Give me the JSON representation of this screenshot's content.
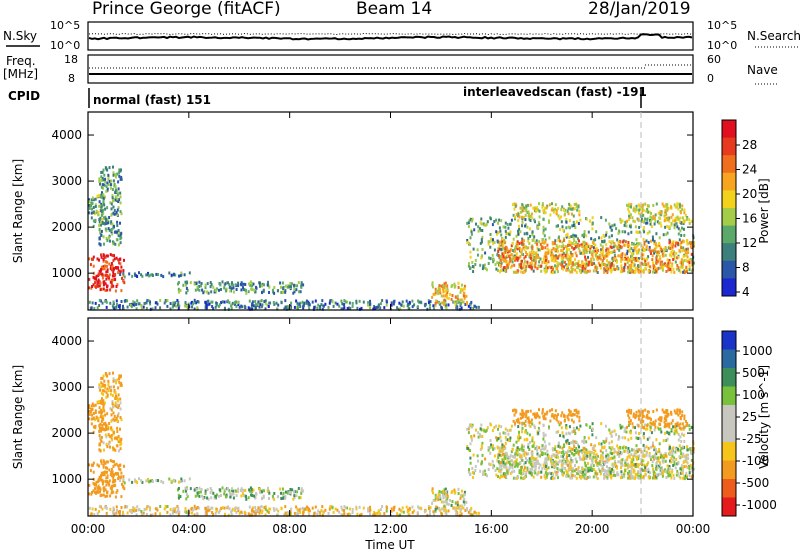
{
  "header": {
    "station": "Prince George (fitACF)",
    "beam": "Beam 14",
    "date": "28/Jan/2019"
  },
  "noise_panel": {
    "left_label": "N.Sky",
    "right_label": "N.Search",
    "left_ticks": [
      "10^5",
      "10^0"
    ],
    "right_ticks": [
      "10^5",
      "10^0"
    ]
  },
  "freq_panel": {
    "left_label_line1": "Freq.",
    "left_label_line2": "[MHz]",
    "right_label": "Nave",
    "left_ticks": [
      "18",
      "8"
    ],
    "right_ticks": [
      "60",
      "0"
    ]
  },
  "cpid": {
    "label": "CPID",
    "segments": [
      {
        "text": "normal (fast) 151",
        "start_hour": 0.0
      },
      {
        "text": "interleavedscan (fast) -191",
        "start_hour": 21.7
      }
    ]
  },
  "x_axis": {
    "label": "Time UT",
    "range_hours": [
      0,
      24
    ],
    "tick_labels": [
      "00:00",
      "04:00",
      "08:00",
      "12:00",
      "16:00",
      "20:00",
      "00:00"
    ]
  },
  "power_panel": {
    "ylabel": "Slant Range [km]",
    "y_ticks": [
      "1000",
      "2000",
      "3000",
      "4000"
    ],
    "colorbar_label": "Power [dB]",
    "colorbar_ticks": [
      "4",
      "8",
      "12",
      "16",
      "20",
      "24",
      "28"
    ],
    "colors": [
      "#1b28d0",
      "#2a57a8",
      "#3c7f7c",
      "#5aa86a",
      "#a5cc49",
      "#f2d21b",
      "#f7a51e",
      "#f06f1e",
      "#e83a1f",
      "#e0101e"
    ]
  },
  "velocity_panel": {
    "ylabel": "Slant Range [km]",
    "y_ticks": [
      "1000",
      "2000",
      "3000",
      "4000"
    ],
    "colorbar_label": "Velocity [m s^-1]",
    "colorbar_ticks": [
      "1000",
      "500",
      "100",
      "25",
      "-25",
      "-100",
      "-500",
      "-1000"
    ],
    "colors": [
      "#1a33c8",
      "#2b6aa0",
      "#3d8e5a",
      "#79c13a",
      "#c7c7c0",
      "#c7c7c0",
      "#f6c51c",
      "#f39b1e",
      "#ee5c1c",
      "#e41a1c"
    ]
  },
  "chart_data": {
    "type": "heatmap",
    "x": {
      "name": "Time UT",
      "unit": "hours",
      "range": [
        0,
        24
      ]
    },
    "y": {
      "name": "Slant Range",
      "unit": "km",
      "range": [
        200,
        4500
      ]
    },
    "power_db_range": [
      0,
      30
    ],
    "velocity_range_m_s": [
      -1000,
      1000
    ],
    "scatter_regions": [
      {
        "t": [
          0.0,
          1.4
        ],
        "r": [
          600,
          1400
        ],
        "power": 27,
        "velocity": -150
      },
      {
        "t": [
          0.4,
          1.3
        ],
        "r": [
          1600,
          3300
        ],
        "power": 9,
        "velocity": -80
      },
      {
        "t": [
          0.0,
          0.6
        ],
        "r": [
          2000,
          2700
        ],
        "power": 11,
        "velocity": -120
      },
      {
        "t": [
          1.2,
          4.0
        ],
        "r": [
          900,
          1000
        ],
        "power": 7,
        "velocity": 10
      },
      {
        "t": [
          3.5,
          8.5
        ],
        "r": [
          550,
          800
        ],
        "power": 9,
        "velocity": 30
      },
      {
        "t": [
          0.0,
          15.5
        ],
        "r": [
          200,
          400
        ],
        "power": 7,
        "velocity": -40
      },
      {
        "t": [
          13.6,
          15.0
        ],
        "r": [
          300,
          800
        ],
        "power": 18,
        "velocity": 0
      },
      {
        "t": [
          15.0,
          24.0
        ],
        "r": [
          1000,
          2200
        ],
        "power": 11,
        "velocity": 5
      },
      {
        "t": [
          16.2,
          24.0
        ],
        "r": [
          1000,
          1700
        ],
        "power": 20,
        "velocity": 0
      },
      {
        "t": [
          16.8,
          19.5
        ],
        "r": [
          2200,
          2500
        ],
        "power": 15,
        "velocity": -150
      },
      {
        "t": [
          21.3,
          23.8
        ],
        "r": [
          2100,
          2500
        ],
        "power": 15,
        "velocity": -150
      }
    ]
  }
}
